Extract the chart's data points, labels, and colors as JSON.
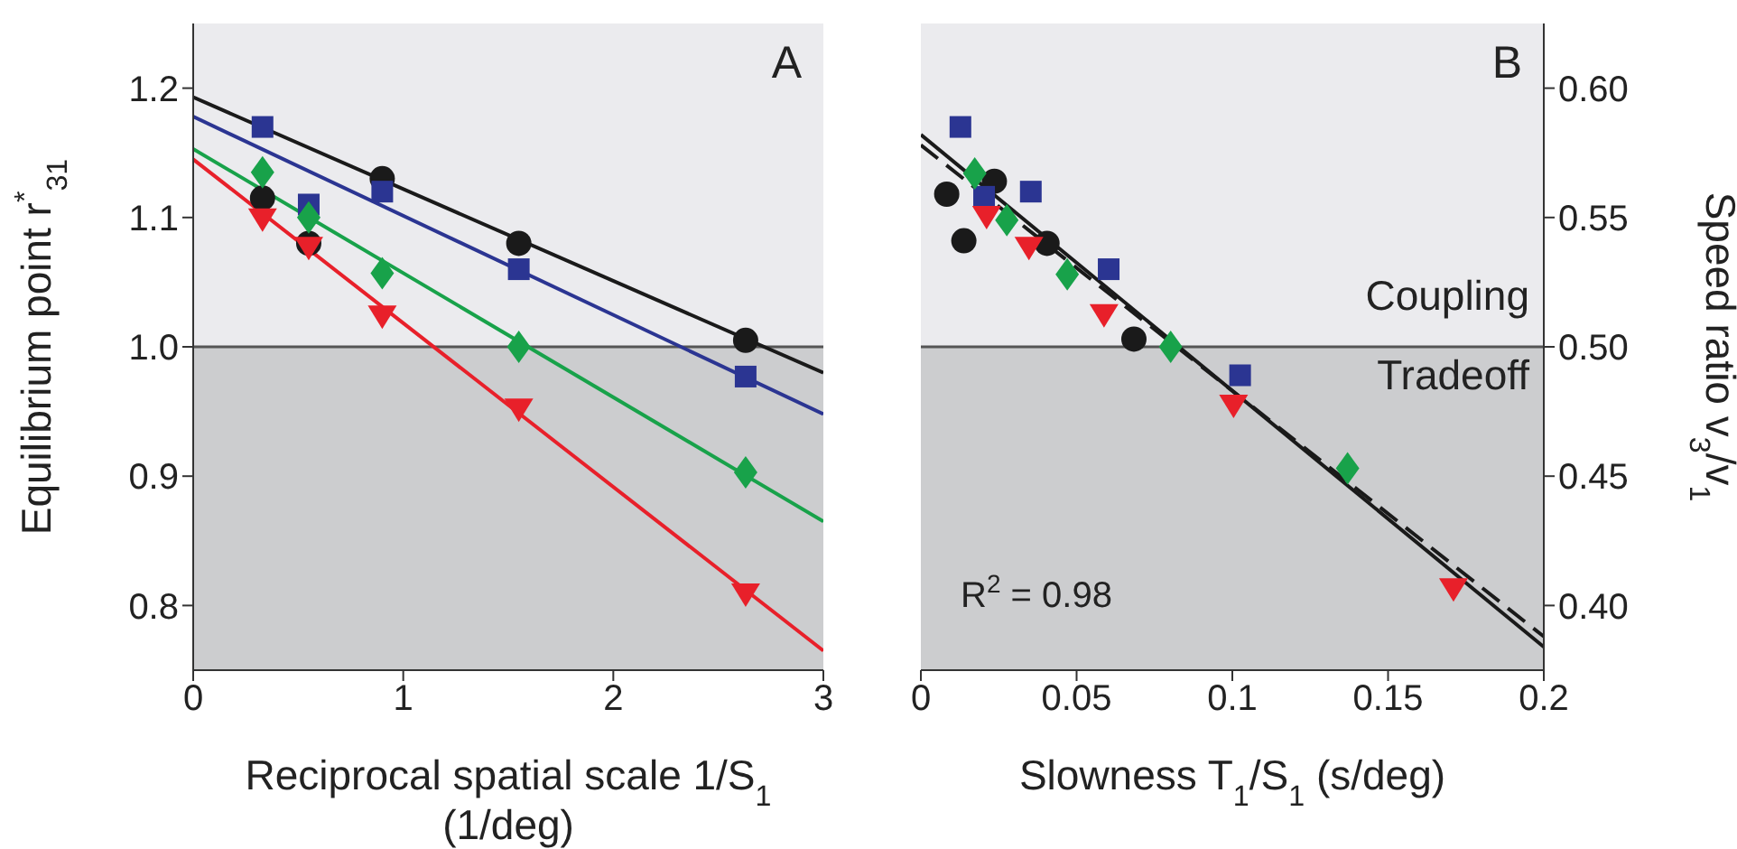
{
  "chart_data": [
    {
      "type": "scatter",
      "xlabel": "Reciprocal spatial scale 1/S$_{1}$\n(1/deg)",
      "ylabel": "Equilibrium point r$^{*}$$_{31}$",
      "xlim": [
        0,
        3
      ],
      "xticks": [
        0,
        1,
        2,
        3
      ],
      "ylim": [
        0.75,
        1.25
      ],
      "yticks": [
        0.8,
        0.9,
        {
          "value": 1.0,
          "label": "1.0"
        },
        1.1,
        1.2
      ],
      "annotations": [
        "A"
      ],
      "bands": [
        {
          "axis": "y",
          "from": 1.0,
          "to": 1.25,
          "color": "#ebebee"
        },
        {
          "axis": "y",
          "from": 0.75,
          "to": 1.0,
          "color": "#cccdcf"
        }
      ],
      "ref_lines": [
        {
          "axis": "y",
          "value": 1.0,
          "color": "#555555"
        }
      ],
      "series": [
        {
          "type": "scatter",
          "marker": "circle",
          "color": "#1a1a1a",
          "x": [
            0.33,
            0.55,
            0.9,
            1.55,
            2.63
          ],
          "values": [
            1.115,
            1.08,
            1.13,
            1.08,
            1.005
          ]
        },
        {
          "type": "scatter",
          "marker": "square",
          "color": "#2b3592",
          "x": [
            0.33,
            0.55,
            0.9,
            1.55,
            2.63
          ],
          "values": [
            1.17,
            1.11,
            1.12,
            1.06,
            0.977
          ]
        },
        {
          "type": "scatter",
          "marker": "diamond",
          "color": "#18a24a",
          "x": [
            0.33,
            0.55,
            0.9,
            1.55,
            2.63
          ],
          "values": [
            1.135,
            1.1,
            1.057,
            1.0,
            0.903
          ]
        },
        {
          "type": "scatter",
          "marker": "triangle",
          "color": "#e8202a",
          "x": [
            0.33,
            0.55,
            0.9,
            1.55,
            2.63
          ],
          "values": [
            1.1,
            1.078,
            1.025,
            0.953,
            0.81
          ]
        },
        {
          "type": "line",
          "color": "#1a1a1a",
          "line_style": "solid",
          "x": [
            0,
            3
          ],
          "values": [
            1.193,
            0.98
          ]
        },
        {
          "type": "line",
          "color": "#2b3592",
          "line_style": "solid",
          "x": [
            0,
            3
          ],
          "values": [
            1.178,
            0.948
          ]
        },
        {
          "type": "line",
          "color": "#18a24a",
          "line_style": "solid",
          "x": [
            0,
            3
          ],
          "values": [
            1.153,
            0.865
          ]
        },
        {
          "type": "line",
          "color": "#e8202a",
          "line_style": "solid",
          "x": [
            0,
            3
          ],
          "values": [
            1.145,
            0.765
          ]
        }
      ]
    },
    {
      "type": "scatter",
      "xlabel": "Slowness T$_{1}$/S$_{1}$ (s/deg)",
      "y2label": "Speed ratio v$_{3}$/v$_{1}$",
      "xlim": [
        0,
        0.2
      ],
      "xticks": [
        0,
        0.05,
        0.1,
        0.15,
        0.2
      ],
      "y2lim": [
        0.375,
        0.625
      ],
      "y2ticks": [
        {
          "value": 0.4,
          "label": "0.40"
        },
        {
          "value": 0.45,
          "label": "0.45"
        },
        {
          "value": 0.5,
          "label": "0.50"
        },
        {
          "value": 0.55,
          "label": "0.55"
        },
        {
          "value": 0.6,
          "label": "0.60"
        }
      ],
      "annotations": [
        "B",
        "R$^{2}$ = 0.98"
      ],
      "bands": [
        {
          "axis": "y2",
          "from": 0.5,
          "to": 0.625,
          "color": "#ebebee",
          "label": "Coupling"
        },
        {
          "axis": "y2",
          "from": 0.375,
          "to": 0.5,
          "color": "#cccdcf",
          "label": "Tradeoff"
        }
      ],
      "ref_lines": [
        {
          "axis": "y2",
          "value": 0.5,
          "color": "#555555"
        }
      ],
      "series": [
        {
          "type": "scatter",
          "axis": "y2",
          "marker": "circle",
          "color": "#1a1a1a",
          "x": [
            0.0083,
            0.0138,
            0.0236,
            0.0405,
            0.0684
          ],
          "values": [
            0.559,
            0.541,
            0.564,
            0.54,
            0.503
          ]
        },
        {
          "type": "scatter",
          "axis": "y2",
          "marker": "square",
          "color": "#2b3592",
          "x": [
            0.0127,
            0.0203,
            0.0353,
            0.0603,
            0.1025
          ],
          "values": [
            0.585,
            0.558,
            0.56,
            0.53,
            0.489
          ]
        },
        {
          "type": "scatter",
          "axis": "y2",
          "marker": "diamond",
          "color": "#18a24a",
          "x": [
            0.0173,
            0.0276,
            0.047,
            0.0802,
            0.137
          ],
          "values": [
            0.567,
            0.549,
            0.528,
            0.5,
            0.453
          ]
        },
        {
          "type": "scatter",
          "axis": "y2",
          "marker": "triangle",
          "color": "#e8202a",
          "x": [
            0.0211,
            0.0347,
            0.0588,
            0.1004,
            0.171
          ],
          "values": [
            0.551,
            0.539,
            0.513,
            0.478,
            0.407
          ]
        },
        {
          "type": "line",
          "axis": "y2",
          "color": "#1a1a1a",
          "line_style": "solid",
          "x": [
            0,
            0.2
          ],
          "values": [
            0.582,
            0.384
          ]
        },
        {
          "type": "line",
          "axis": "y2",
          "color": "#1a1a1a",
          "line_style": "dashed",
          "x": [
            0,
            0.2
          ],
          "values": [
            0.578,
            0.388
          ]
        }
      ]
    }
  ]
}
